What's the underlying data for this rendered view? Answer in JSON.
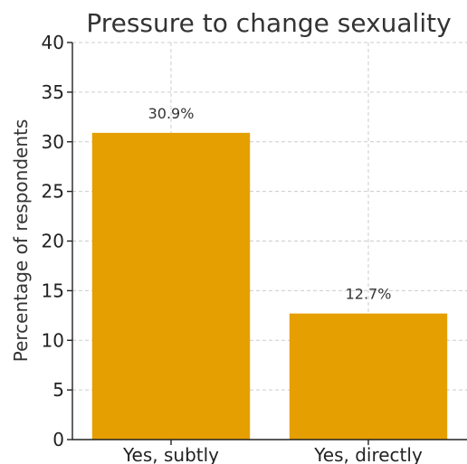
{
  "chart_data": {
    "type": "bar",
    "title": "Pressure to change sexuality",
    "xlabel": "",
    "ylabel": "Percentage of respondents",
    "categories": [
      "Yes, subtly",
      "Yes, directly"
    ],
    "values": [
      30.9,
      12.7
    ],
    "data_labels": [
      "30.9%",
      "12.7%"
    ],
    "ylim": [
      0,
      40
    ],
    "yticks": [
      "0",
      "5",
      "10",
      "15",
      "20",
      "25",
      "30",
      "35",
      "40"
    ],
    "grid": true,
    "bar_color": "#E69F00"
  }
}
